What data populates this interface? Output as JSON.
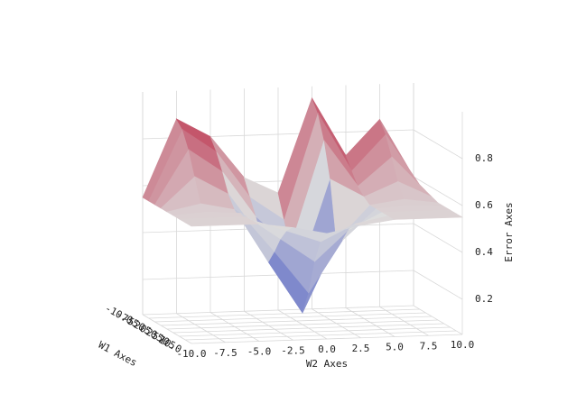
{
  "chart_data": {
    "type": "surface3d",
    "xlabel": "W2 Axes",
    "ylabel": "W1 Axes",
    "zlabel": "Error Axes",
    "x": [
      -10,
      -7.5,
      -5,
      -2.5,
      0,
      2.5,
      5,
      7.5,
      10
    ],
    "y": [
      -10,
      -7.5,
      -5,
      -2.5,
      0,
      2.5,
      5,
      7.5,
      10
    ],
    "z": [
      [
        0.55,
        0.88,
        0.8,
        0.62,
        0.55,
        0.95,
        0.7,
        0.85,
        0.6
      ],
      [
        0.55,
        0.85,
        0.75,
        0.55,
        0.45,
        0.9,
        0.65,
        0.8,
        0.58
      ],
      [
        0.55,
        0.78,
        0.68,
        0.48,
        0.35,
        0.8,
        0.6,
        0.72,
        0.57
      ],
      [
        0.55,
        0.68,
        0.6,
        0.4,
        0.22,
        0.65,
        0.57,
        0.63,
        0.56
      ],
      [
        0.55,
        0.58,
        0.55,
        0.32,
        0.1,
        0.4,
        0.55,
        0.57,
        0.55
      ],
      [
        0.55,
        0.56,
        0.55,
        0.38,
        0.2,
        0.42,
        0.55,
        0.56,
        0.55
      ],
      [
        0.55,
        0.55,
        0.55,
        0.45,
        0.35,
        0.48,
        0.55,
        0.55,
        0.55
      ],
      [
        0.55,
        0.55,
        0.55,
        0.5,
        0.45,
        0.52,
        0.55,
        0.55,
        0.55
      ],
      [
        0.55,
        0.55,
        0.55,
        0.53,
        0.5,
        0.53,
        0.55,
        0.55,
        0.55
      ]
    ],
    "colormap": "coolwarm",
    "xlim": [
      -10,
      10
    ],
    "xticks": [
      {
        "value": -10,
        "label": "-10.0"
      },
      {
        "value": -7.5,
        "label": "-7.5"
      },
      {
        "value": -5,
        "label": "-5.0"
      },
      {
        "value": -2.5,
        "label": "-2.5"
      },
      {
        "value": 0,
        "label": "0.0"
      },
      {
        "value": 2.5,
        "label": "2.5"
      },
      {
        "value": 5,
        "label": "5.0"
      },
      {
        "value": 7.5,
        "label": "7.5"
      },
      {
        "value": 10,
        "label": "10.0"
      }
    ],
    "ylim": [
      -10,
      10
    ],
    "yticks": [
      {
        "value": -10,
        "label": "-10.0"
      },
      {
        "value": -7.5,
        "label": "-7.5"
      },
      {
        "value": -5,
        "label": "-5.0"
      },
      {
        "value": -2.5,
        "label": "-2.5"
      },
      {
        "value": 0,
        "label": "0.0"
      },
      {
        "value": 2.5,
        "label": "2.5"
      },
      {
        "value": 5,
        "label": "5.0"
      },
      {
        "value": 7.5,
        "label": "7.5"
      },
      {
        "value": 10,
        "label": "10.0"
      }
    ],
    "zlim": [
      0.05,
      1.0
    ],
    "zticks": [
      0.2,
      0.4,
      0.6,
      0.8
    ],
    "grid": true
  }
}
